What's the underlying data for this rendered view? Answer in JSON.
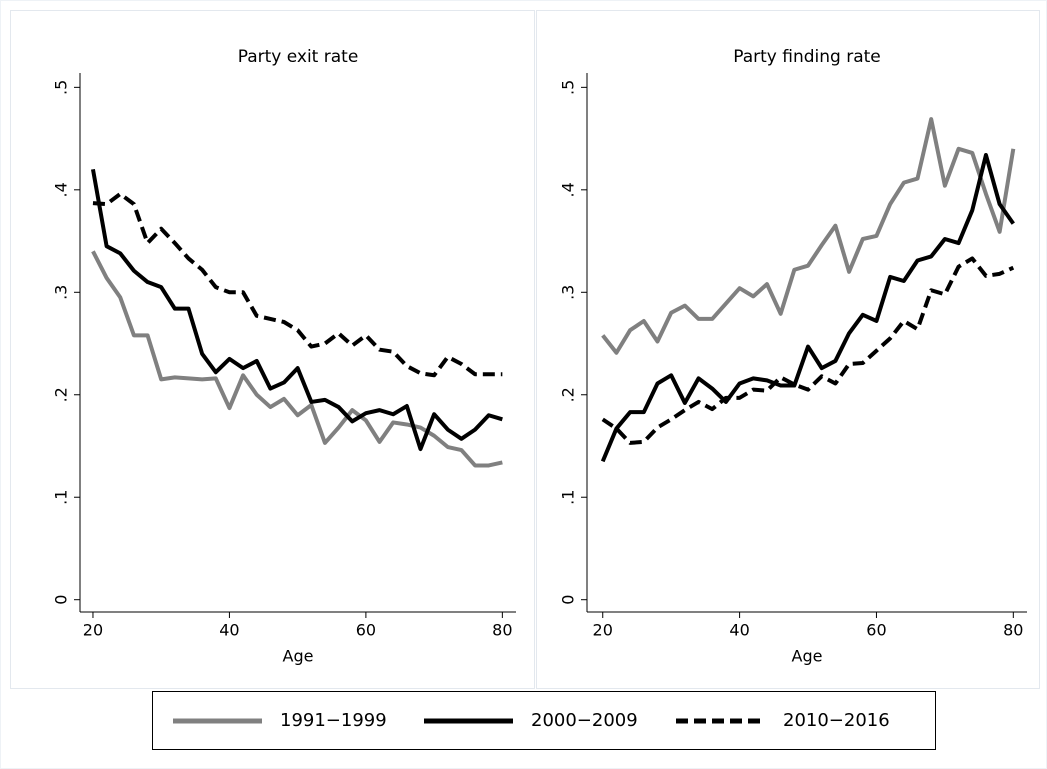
{
  "chart_data": [
    {
      "type": "line",
      "title": "Party exit rate",
      "xlabel": "Age",
      "x": [
        20,
        22,
        24,
        26,
        28,
        30,
        32,
        34,
        36,
        38,
        40,
        42,
        44,
        46,
        48,
        50,
        52,
        54,
        56,
        58,
        60,
        62,
        64,
        66,
        68,
        70,
        72,
        74,
        76,
        78,
        80
      ],
      "xlim": [
        18.1,
        82
      ],
      "xticks": [
        20,
        40,
        60,
        80
      ],
      "ylim": [
        -0.012,
        0.514
      ],
      "yticks": [
        0,
        {
          "value": 0.1,
          "label": ".1"
        },
        {
          "value": 0.2,
          "label": ".2"
        },
        {
          "value": 0.3,
          "label": ".3"
        },
        {
          "value": 0.4,
          "label": ".4"
        },
        {
          "value": 0.5,
          "label": ".5"
        }
      ],
      "series": [
        {
          "name": "1991−1999",
          "color": "#808080",
          "line_style": "solid",
          "values": [
            0.34,
            0.314,
            0.295,
            0.258,
            0.258,
            0.215,
            0.217,
            0.216,
            0.215,
            0.216,
            0.187,
            0.219,
            0.2,
            0.188,
            0.196,
            0.18,
            0.19,
            0.153,
            0.168,
            0.185,
            0.175,
            0.154,
            0.173,
            0.171,
            0.168,
            0.16,
            0.149,
            0.146,
            0.131,
            0.131,
            0.134
          ]
        },
        {
          "name": "2000−2009",
          "color": "#000000",
          "line_style": "solid",
          "values": [
            0.42,
            0.345,
            0.338,
            0.321,
            0.31,
            0.305,
            0.284,
            0.284,
            0.24,
            0.222,
            0.235,
            0.226,
            0.233,
            0.206,
            0.212,
            0.226,
            0.193,
            0.195,
            0.188,
            0.174,
            0.182,
            0.185,
            0.181,
            0.189,
            0.147,
            0.181,
            0.166,
            0.157,
            0.166,
            0.18,
            0.176
          ]
        },
        {
          "name": "2010−2016",
          "color": "#000000",
          "line_style": "dashed",
          "values": [
            0.387,
            0.386,
            0.396,
            0.386,
            0.348,
            0.362,
            0.348,
            0.333,
            0.322,
            0.305,
            0.3,
            0.3,
            0.277,
            0.274,
            0.271,
            0.263,
            0.247,
            0.25,
            0.26,
            0.248,
            0.258,
            0.244,
            0.242,
            0.228,
            0.221,
            0.219,
            0.237,
            0.23,
            0.22,
            0.22,
            0.22
          ]
        }
      ]
    },
    {
      "type": "line",
      "title": "Party finding rate",
      "xlabel": "Age",
      "x": [
        20,
        22,
        24,
        26,
        28,
        30,
        32,
        34,
        36,
        38,
        40,
        42,
        44,
        46,
        48,
        50,
        52,
        54,
        56,
        58,
        60,
        62,
        64,
        66,
        68,
        70,
        72,
        74,
        76,
        78,
        80
      ],
      "xlim": [
        17.7,
        82
      ],
      "xticks": [
        20,
        40,
        60,
        80
      ],
      "ylim": [
        -0.012,
        0.514
      ],
      "yticks": [
        0,
        {
          "value": 0.1,
          "label": ".1"
        },
        {
          "value": 0.2,
          "label": ".2"
        },
        {
          "value": 0.3,
          "label": ".3"
        },
        {
          "value": 0.4,
          "label": ".4"
        },
        {
          "value": 0.5,
          "label": ".5"
        }
      ],
      "series": [
        {
          "color": "#808080",
          "line_style": "solid",
          "values": [
            0.258,
            0.241,
            0.263,
            0.272,
            0.252,
            0.28,
            0.287,
            0.274,
            0.274,
            0.289,
            0.304,
            0.296,
            0.308,
            0.279,
            0.322,
            0.326,
            0.346,
            0.365,
            0.32,
            0.352,
            0.355,
            0.386,
            0.407,
            0.411,
            0.469,
            0.404,
            0.44,
            0.436,
            0.396,
            0.359,
            0.44
          ]
        },
        {
          "color": "#000000",
          "line_style": "solid",
          "values": [
            0.135,
            0.167,
            0.183,
            0.183,
            0.211,
            0.219,
            0.192,
            0.216,
            0.206,
            0.193,
            0.211,
            0.216,
            0.214,
            0.209,
            0.209,
            0.247,
            0.226,
            0.233,
            0.26,
            0.278,
            0.272,
            0.315,
            0.311,
            0.331,
            0.335,
            0.352,
            0.348,
            0.38,
            0.434,
            0.386,
            0.367
          ]
        },
        {
          "color": "#000000",
          "line_style": "dashed",
          "values": [
            0.176,
            0.167,
            0.153,
            0.154,
            0.168,
            0.176,
            0.185,
            0.193,
            0.186,
            0.197,
            0.197,
            0.205,
            0.204,
            0.217,
            0.21,
            0.205,
            0.218,
            0.211,
            0.23,
            0.231,
            0.243,
            0.255,
            0.272,
            0.264,
            0.302,
            0.298,
            0.325,
            0.333,
            0.316,
            0.318,
            0.324
          ]
        }
      ]
    }
  ]
}
